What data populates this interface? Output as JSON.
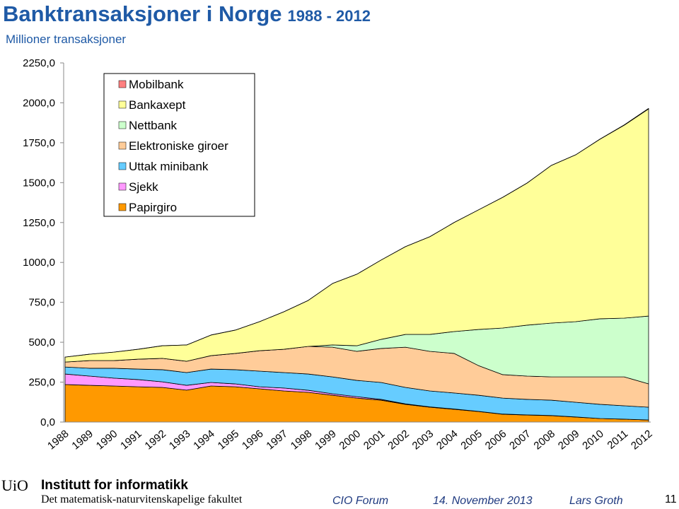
{
  "chart_data": {
    "type": "stacked-area",
    "title": "Banktransaksjoner i Norge",
    "title_years": "1988 - 2012",
    "subtitle": "Millioner transaksjoner",
    "categories": [
      "1988",
      "1989",
      "1990",
      "1991",
      "1992",
      "1993",
      "1994",
      "1995",
      "1996",
      "1997",
      "1998",
      "1999",
      "2000",
      "2001",
      "2002",
      "2003",
      "2004",
      "2005",
      "2006",
      "2007",
      "2008",
      "2009",
      "2010",
      "2011",
      "2012"
    ],
    "series": [
      {
        "name": "Papirgiro",
        "color": "#ff9900",
        "values": [
          235,
          230,
          226,
          221,
          217,
          200,
          226,
          221,
          208,
          195,
          186,
          168,
          150,
          137,
          111,
          93,
          80,
          66,
          49,
          44,
          40,
          31,
          22,
          18,
          13
        ]
      },
      {
        "name": "Sjekk",
        "color": "#ff99ff",
        "values": [
          66,
          58,
          49,
          45,
          35,
          30,
          22,
          18,
          13,
          18,
          13,
          9,
          9,
          5,
          3,
          2,
          2,
          1,
          1,
          1,
          1,
          1,
          0,
          0,
          0
        ]
      },
      {
        "name": "Uttak minibank",
        "color": "#66ccff",
        "values": [
          44,
          49,
          62,
          66,
          76,
          80,
          84,
          89,
          98,
          97,
          102,
          106,
          102,
          106,
          103,
          100,
          100,
          101,
          100,
          97,
          96,
          92,
          89,
          84,
          80
        ]
      },
      {
        "name": "Elektroniske giroer",
        "color": "#ffcc99",
        "values": [
          31,
          48,
          48,
          62,
          71,
          71,
          84,
          102,
          128,
          146,
          173,
          186,
          182,
          213,
          252,
          248,
          248,
          186,
          147,
          146,
          146,
          159,
          172,
          181,
          146
        ]
      },
      {
        "name": "Nettbank",
        "color": "#ccffcc",
        "values": [
          0,
          0,
          0,
          0,
          0,
          0,
          0,
          0,
          0,
          0,
          0,
          14,
          35,
          57,
          80,
          106,
          137,
          226,
          292,
          319,
          337,
          346,
          364,
          368,
          425
        ]
      },
      {
        "name": "Bankaxept",
        "color": "#ffff99",
        "values": [
          31,
          40,
          53,
          62,
          79,
          102,
          129,
          146,
          182,
          235,
          288,
          385,
          448,
          497,
          550,
          612,
          683,
          749,
          819,
          890,
          988,
          1045,
          1125,
          1209,
          1298
        ]
      },
      {
        "name": "Mobilbank",
        "color": "#ff8080",
        "values": [
          0,
          0,
          0,
          0,
          0,
          0,
          0,
          0,
          0,
          0,
          0,
          0,
          0,
          0,
          0,
          0,
          0,
          0,
          0,
          0,
          0,
          0,
          1,
          2,
          3
        ]
      }
    ],
    "ylim": [
      0,
      2250
    ],
    "yticks": [
      {
        "value": 0,
        "label": "0,0"
      },
      {
        "value": 250,
        "label": "250,0"
      },
      {
        "value": 500,
        "label": "500,0"
      },
      {
        "value": 750,
        "label": "750,0"
      },
      {
        "value": 1000,
        "label": "1000,0"
      },
      {
        "value": 1250,
        "label": "1250,0"
      },
      {
        "value": 1500,
        "label": "1500,0"
      },
      {
        "value": 1750,
        "label": "1750,0"
      },
      {
        "value": 2000,
        "label": "2000,0"
      },
      {
        "value": 2250,
        "label": "2250,0"
      }
    ],
    "legend": "upper-left"
  },
  "footer": {
    "org": "UiO",
    "institute": "Institutt for informatikk",
    "faculty": "Det matematisk-naturvitenskapelige fakultet",
    "event": "CIO Forum",
    "date": "14. November 2013",
    "author": "Lars Groth",
    "page": "11"
  }
}
